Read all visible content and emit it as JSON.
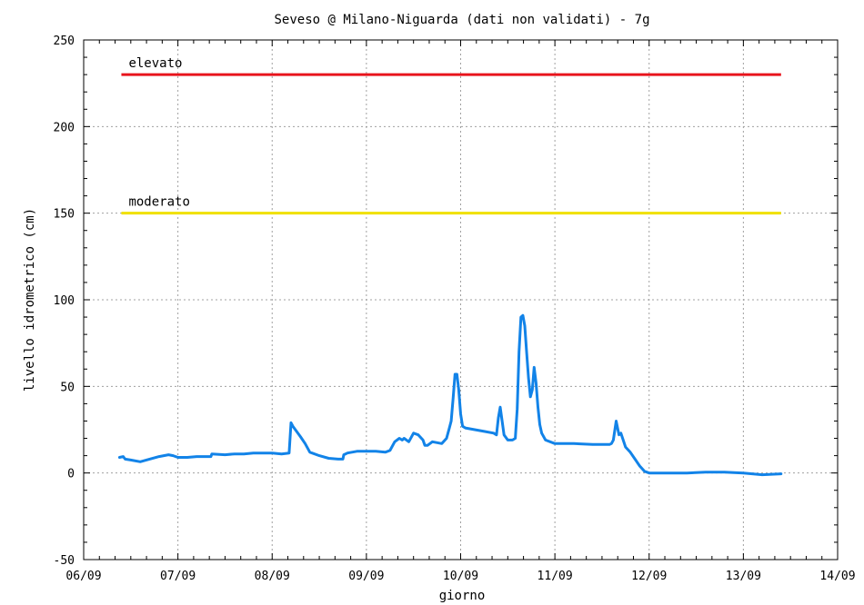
{
  "chart_data": {
    "type": "line",
    "title": "Seveso @ Milano-Niguarda (dati non validati) - 7g",
    "xlabel": "giorno",
    "ylabel": "livello idrometrico (cm)",
    "ylim": [
      -50,
      250
    ],
    "yticks": [
      "-50",
      "0",
      "50",
      "100",
      "150",
      "200",
      "250"
    ],
    "xlim": [
      0,
      8
    ],
    "xticks": [
      "06/09",
      "07/09",
      "08/09",
      "09/09",
      "10/09",
      "11/09",
      "12/09",
      "13/09",
      "14/09"
    ],
    "grid": true,
    "thresholds": [
      {
        "name": "elevato",
        "value": 230,
        "x_start": 0.4,
        "x_end": 7.4,
        "color": "#e8141c"
      },
      {
        "name": "moderato",
        "value": 150,
        "x_start": 0.4,
        "x_end": 7.4,
        "color": "#f0e000"
      }
    ],
    "series": [
      {
        "color": "#1283e8",
        "x": [
          0.38,
          0.42,
          0.44,
          0.5,
          0.6,
          0.7,
          0.8,
          0.9,
          0.95,
          1.0,
          1.1,
          1.2,
          1.3,
          1.35,
          1.36,
          1.5,
          1.6,
          1.7,
          1.8,
          1.9,
          2.0,
          2.1,
          2.18,
          2.2,
          2.22,
          2.3,
          2.35,
          2.4,
          2.5,
          2.6,
          2.7,
          2.75,
          2.76,
          2.8,
          2.9,
          3.0,
          3.1,
          3.2,
          3.25,
          3.3,
          3.35,
          3.38,
          3.4,
          3.45,
          3.5,
          3.55,
          3.6,
          3.62,
          3.65,
          3.7,
          3.75,
          3.8,
          3.85,
          3.88,
          3.9,
          3.92,
          3.94,
          3.96,
          3.98,
          4.0,
          4.02,
          4.05,
          4.15,
          4.25,
          4.35,
          4.38,
          4.4,
          4.42,
          4.44,
          4.46,
          4.5,
          4.55,
          4.58,
          4.6,
          4.62,
          4.64,
          4.66,
          4.68,
          4.7,
          4.72,
          4.74,
          4.76,
          4.78,
          4.8,
          4.82,
          4.84,
          4.86,
          4.9,
          5.0,
          5.2,
          5.4,
          5.5,
          5.58,
          5.6,
          5.62,
          5.65,
          5.68,
          5.7,
          5.75,
          5.8,
          5.85,
          5.9,
          5.95,
          6.0,
          6.2,
          6.4,
          6.6,
          6.8,
          7.0,
          7.2,
          7.4
        ],
        "values": [
          9,
          9.5,
          8,
          7.5,
          6.5,
          8,
          9.5,
          10.5,
          10,
          9,
          9,
          9.5,
          9.5,
          9.5,
          11,
          10.5,
          11,
          11,
          11.5,
          11.5,
          11.5,
          11,
          11.5,
          29,
          27,
          21,
          17,
          12,
          10,
          8.5,
          8,
          8,
          10.5,
          11.5,
          12.5,
          12.5,
          12.5,
          12,
          13,
          18,
          20,
          19,
          20,
          18,
          23,
          22,
          19,
          16,
          16,
          18,
          17.5,
          17,
          20,
          26,
          30,
          43,
          57,
          57,
          48,
          34,
          27,
          26,
          25,
          24,
          23,
          22,
          32,
          38,
          30,
          22,
          19,
          19,
          20,
          37,
          70,
          90,
          91,
          85,
          70,
          55,
          44,
          48,
          61,
          52,
          38,
          28,
          23,
          19,
          17,
          17,
          16.5,
          16.5,
          16.5,
          17,
          19,
          30,
          22,
          23,
          15,
          12,
          8,
          4,
          1,
          0,
          0,
          0,
          0.5,
          0.5,
          0,
          -1,
          -0.5
        ]
      }
    ]
  }
}
